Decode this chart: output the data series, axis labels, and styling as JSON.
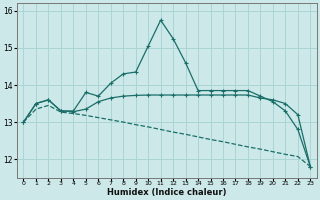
{
  "xlabel": "Humidex (Indice chaleur)",
  "bg_color": "#cce8e8",
  "grid_color": "#aad4d4",
  "line_color": "#1a6e6a",
  "xlim": [
    -0.5,
    23.5
  ],
  "ylim": [
    11.5,
    16.2
  ],
  "yticks": [
    12,
    13,
    14,
    15,
    16
  ],
  "xticks": [
    0,
    1,
    2,
    3,
    4,
    5,
    6,
    7,
    8,
    9,
    10,
    11,
    12,
    13,
    14,
    15,
    16,
    17,
    18,
    19,
    20,
    21,
    22,
    23
  ],
  "curve1_x": [
    0,
    1,
    2,
    3,
    4,
    5,
    6,
    7,
    8,
    9,
    10,
    11,
    12,
    13,
    14,
    15,
    16,
    17,
    18,
    19,
    20,
    21,
    22,
    23
  ],
  "curve1_y": [
    13.0,
    13.5,
    13.6,
    13.3,
    13.3,
    13.8,
    13.7,
    14.05,
    14.3,
    14.35,
    15.05,
    15.75,
    15.25,
    14.6,
    13.85,
    13.85,
    13.85,
    13.85,
    13.85,
    13.7,
    13.55,
    13.3,
    12.8,
    11.8
  ],
  "curve2_x": [
    0,
    1,
    2,
    3,
    4,
    5,
    6,
    7,
    8,
    9,
    10,
    11,
    12,
    13,
    14,
    15,
    16,
    17,
    18,
    19,
    20,
    21,
    22,
    23
  ],
  "curve2_y": [
    13.0,
    13.5,
    13.6,
    13.3,
    13.28,
    13.35,
    13.55,
    13.65,
    13.7,
    13.72,
    13.73,
    13.73,
    13.73,
    13.73,
    13.73,
    13.73,
    13.73,
    13.73,
    13.73,
    13.65,
    13.6,
    13.5,
    13.2,
    11.8
  ],
  "curve3_x": [
    0,
    1,
    2,
    3,
    4,
    5,
    6,
    7,
    8,
    9,
    10,
    11,
    12,
    13,
    14,
    15,
    16,
    17,
    18,
    19,
    20,
    21,
    22,
    23
  ],
  "curve3_y": [
    13.0,
    13.35,
    13.45,
    13.27,
    13.23,
    13.18,
    13.12,
    13.06,
    13.0,
    12.93,
    12.87,
    12.8,
    12.73,
    12.67,
    12.6,
    12.53,
    12.47,
    12.4,
    12.33,
    12.27,
    12.2,
    12.13,
    12.07,
    11.8
  ]
}
